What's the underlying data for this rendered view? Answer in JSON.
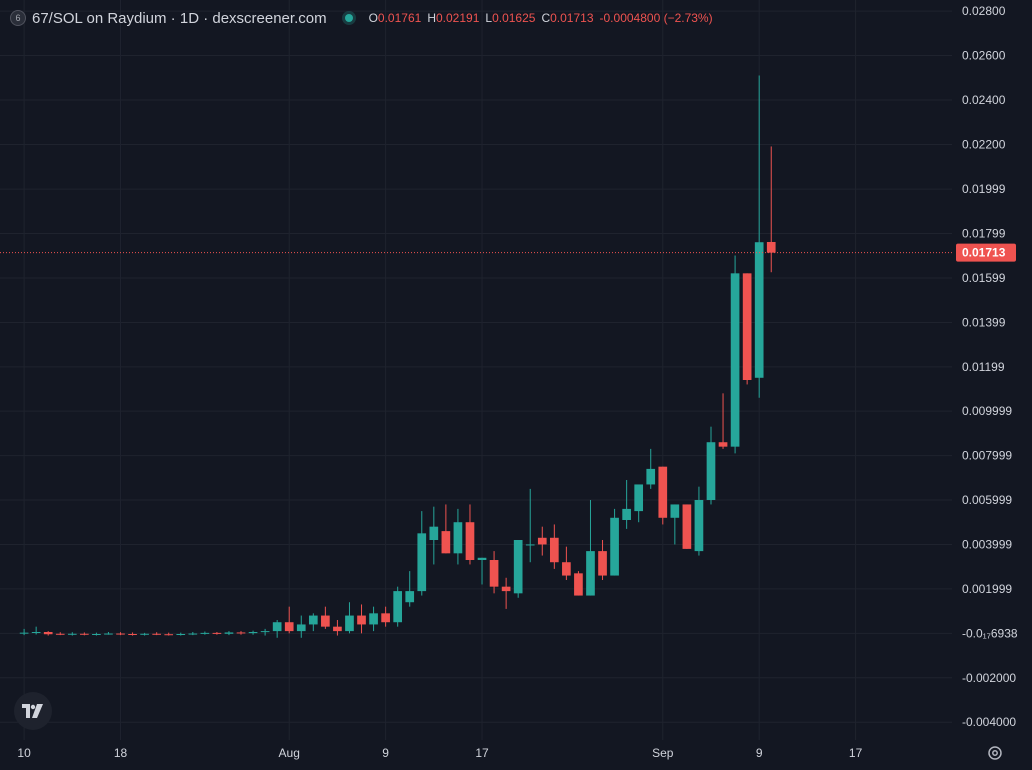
{
  "legend": {
    "logo_letter": "6",
    "symbol": "67/SOL on Raydium · 1D · dexscreener.com",
    "open_key": "O",
    "open": "0.01761",
    "high_key": "H",
    "high": "0.02191",
    "low_key": "L",
    "low": "0.01625",
    "close_key": "C",
    "close": "0.01713",
    "change": "-0.0004800 (−2.73%)"
  },
  "colors": {
    "background": "#131722",
    "up": "#26a69a",
    "down": "#ef5350",
    "grid": "#1f232e",
    "text": "#d1d4dc"
  },
  "icons": {
    "logo": "tradingview-logo-icon",
    "settings": "settings-gear-icon"
  },
  "chart_data": {
    "type": "candlestick",
    "title": "67/SOL on Raydium · 1D · dexscreener.com",
    "y_tick_labels": [
      "0.02800",
      "0.02600",
      "0.02400",
      "0.02200",
      "0.01999",
      "0.01799",
      "0.01599",
      "0.01399",
      "0.01199",
      "0.009999",
      "0.007999",
      "0.005999",
      "0.003999",
      "0.001999",
      "-0.0₁₇6938",
      "-0.002000",
      "-0.004000"
    ],
    "y_tick_values": [
      0.028,
      0.026,
      0.024,
      0.022,
      0.01999,
      0.01799,
      0.01599,
      0.01399,
      0.01199,
      0.009999,
      0.007999,
      0.005999,
      0.003999,
      0.001999,
      0,
      -0.002,
      -0.004
    ],
    "x_tick_labels": [
      "10",
      "18",
      "Aug",
      "9",
      "17",
      "Sep",
      "9",
      "17"
    ],
    "x_tick_dates": [
      "2025-07-10",
      "2025-07-18",
      "2025-08-01",
      "2025-08-09",
      "2025-08-17",
      "2025-09-01",
      "2025-09-09",
      "2025-09-17"
    ],
    "ylim": [
      -0.0048,
      0.0285
    ],
    "xlim": [
      "2025-07-08",
      "2025-09-25"
    ],
    "last_price": "0.01713",
    "grid": true,
    "candles": [
      {
        "date": "2025-07-10",
        "o": 1e-05,
        "h": 0.0002,
        "l": -8e-05,
        "c": 3e-05
      },
      {
        "date": "2025-07-11",
        "o": 3e-05,
        "h": 0.0003,
        "l": -5e-05,
        "c": 6e-05
      },
      {
        "date": "2025-07-12",
        "o": 6e-05,
        "h": 0.0001,
        "l": -0.0001,
        "c": -4e-05
      },
      {
        "date": "2025-07-13",
        "o": -2e-05,
        "h": 5e-05,
        "l": -8e-05,
        "c": -4e-05
      },
      {
        "date": "2025-07-14",
        "o": -4e-05,
        "h": 5e-05,
        "l": -0.0001,
        "c": -2e-05
      },
      {
        "date": "2025-07-15",
        "o": -2e-05,
        "h": 4e-05,
        "l": -9e-05,
        "c": -5e-05
      },
      {
        "date": "2025-07-16",
        "o": -5e-05,
        "h": 3e-05,
        "l": -0.0001,
        "c": -3e-05
      },
      {
        "date": "2025-07-17",
        "o": -3e-05,
        "h": 6e-05,
        "l": -6e-05,
        "c": -1e-05
      },
      {
        "date": "2025-07-18",
        "o": -1e-05,
        "h": 5e-05,
        "l": -8e-05,
        "c": -3e-05
      },
      {
        "date": "2025-07-19",
        "o": -3e-05,
        "h": 4e-05,
        "l": -0.0001,
        "c": -5e-05
      },
      {
        "date": "2025-07-20",
        "o": -5e-05,
        "h": 2e-05,
        "l": -0.0001,
        "c": -2e-05
      },
      {
        "date": "2025-07-21",
        "o": -2e-05,
        "h": 5e-05,
        "l": -8e-05,
        "c": -4e-05
      },
      {
        "date": "2025-07-22",
        "o": -4e-05,
        "h": 3e-05,
        "l": -0.0001,
        "c": -6e-05
      },
      {
        "date": "2025-07-23",
        "o": -6e-05,
        "h": 3e-05,
        "l": -0.0001,
        "c": -3e-05
      },
      {
        "date": "2025-07-24",
        "o": -3e-05,
        "h": 6e-05,
        "l": -8e-05,
        "c": -1e-05
      },
      {
        "date": "2025-07-25",
        "o": -1e-05,
        "h": 8e-05,
        "l": -6e-05,
        "c": 2e-05
      },
      {
        "date": "2025-07-26",
        "o": 2e-05,
        "h": 6e-05,
        "l": -6e-05,
        "c": -2e-05
      },
      {
        "date": "2025-07-27",
        "o": -2e-05,
        "h": 0.0001,
        "l": -8e-05,
        "c": 4e-05
      },
      {
        "date": "2025-07-28",
        "o": 4e-05,
        "h": 0.0001,
        "l": -6e-05,
        "c": 1e-05
      },
      {
        "date": "2025-07-29",
        "o": 1e-05,
        "h": 0.00012,
        "l": -6e-05,
        "c": 6e-05
      },
      {
        "date": "2025-07-30",
        "o": 6e-05,
        "h": 0.0002,
        "l": -0.0001,
        "c": 0.0001
      },
      {
        "date": "2025-07-31",
        "o": 0.0001,
        "h": 0.0006,
        "l": -0.0002,
        "c": 0.0005
      },
      {
        "date": "2025-08-01",
        "o": 0.0005,
        "h": 0.0012,
        "l": 0.0,
        "c": 0.0001
      },
      {
        "date": "2025-08-02",
        "o": 0.0001,
        "h": 0.0008,
        "l": -0.0002,
        "c": 0.0004
      },
      {
        "date": "2025-08-03",
        "o": 0.0004,
        "h": 0.0009,
        "l": 0.0001,
        "c": 0.0008
      },
      {
        "date": "2025-08-04",
        "o": 0.0008,
        "h": 0.0012,
        "l": 0.0002,
        "c": 0.0003
      },
      {
        "date": "2025-08-05",
        "o": 0.0003,
        "h": 0.0006,
        "l": -0.0001,
        "c": 0.0001
      },
      {
        "date": "2025-08-06",
        "o": 0.0001,
        "h": 0.0014,
        "l": 0.0,
        "c": 0.0008
      },
      {
        "date": "2025-08-07",
        "o": 0.0008,
        "h": 0.0013,
        "l": 0.0,
        "c": 0.0004
      },
      {
        "date": "2025-08-08",
        "o": 0.0004,
        "h": 0.0012,
        "l": 0.0001,
        "c": 0.0009
      },
      {
        "date": "2025-08-09",
        "o": 0.0009,
        "h": 0.0012,
        "l": 0.0003,
        "c": 0.0005
      },
      {
        "date": "2025-08-10",
        "o": 0.0005,
        "h": 0.0021,
        "l": 0.0003,
        "c": 0.0019
      },
      {
        "date": "2025-08-11",
        "o": 0.0014,
        "h": 0.0028,
        "l": 0.0012,
        "c": 0.0019
      },
      {
        "date": "2025-08-12",
        "o": 0.0019,
        "h": 0.0055,
        "l": 0.0017,
        "c": 0.0045
      },
      {
        "date": "2025-08-13",
        "o": 0.0042,
        "h": 0.0057,
        "l": 0.0031,
        "c": 0.0048
      },
      {
        "date": "2025-08-14",
        "o": 0.0046,
        "h": 0.0058,
        "l": 0.0036,
        "c": 0.0036
      },
      {
        "date": "2025-08-15",
        "o": 0.0036,
        "h": 0.0056,
        "l": 0.0031,
        "c": 0.005
      },
      {
        "date": "2025-08-16",
        "o": 0.005,
        "h": 0.0058,
        "l": 0.0031,
        "c": 0.0033
      },
      {
        "date": "2025-08-17",
        "o": 0.0033,
        "h": 0.0034,
        "l": 0.0022,
        "c": 0.0034
      },
      {
        "date": "2025-08-18",
        "o": 0.0033,
        "h": 0.0037,
        "l": 0.0018,
        "c": 0.0021
      },
      {
        "date": "2025-08-19",
        "o": 0.0021,
        "h": 0.0025,
        "l": 0.0011,
        "c": 0.0019
      },
      {
        "date": "2025-08-20",
        "o": 0.0018,
        "h": 0.0042,
        "l": 0.0016,
        "c": 0.0042
      },
      {
        "date": "2025-08-21",
        "o": 0.004,
        "h": 0.0065,
        "l": 0.0032,
        "c": 0.004
      },
      {
        "date": "2025-08-22",
        "o": 0.0043,
        "h": 0.0048,
        "l": 0.0035,
        "c": 0.004
      },
      {
        "date": "2025-08-23",
        "o": 0.0043,
        "h": 0.0049,
        "l": 0.0029,
        "c": 0.0032
      },
      {
        "date": "2025-08-24",
        "o": 0.0032,
        "h": 0.0039,
        "l": 0.0024,
        "c": 0.0026
      },
      {
        "date": "2025-08-25",
        "o": 0.0027,
        "h": 0.0028,
        "l": 0.0017,
        "c": 0.0017
      },
      {
        "date": "2025-08-26",
        "o": 0.0017,
        "h": 0.006,
        "l": 0.0017,
        "c": 0.0037
      },
      {
        "date": "2025-08-27",
        "o": 0.0037,
        "h": 0.0042,
        "l": 0.0024,
        "c": 0.0026
      },
      {
        "date": "2025-08-28",
        "o": 0.0026,
        "h": 0.0056,
        "l": 0.0026,
        "c": 0.0052
      },
      {
        "date": "2025-08-29",
        "o": 0.0051,
        "h": 0.0069,
        "l": 0.0047,
        "c": 0.0056
      },
      {
        "date": "2025-08-30",
        "o": 0.0055,
        "h": 0.0066,
        "l": 0.005,
        "c": 0.0067
      },
      {
        "date": "2025-08-31",
        "o": 0.0067,
        "h": 0.0083,
        "l": 0.0065,
        "c": 0.0074
      },
      {
        "date": "2025-09-01",
        "o": 0.0075,
        "h": 0.0075,
        "l": 0.0049,
        "c": 0.0052
      },
      {
        "date": "2025-09-02",
        "o": 0.0052,
        "h": 0.0058,
        "l": 0.004,
        "c": 0.0058
      },
      {
        "date": "2025-09-03",
        "o": 0.0058,
        "h": 0.0058,
        "l": 0.0038,
        "c": 0.0038
      },
      {
        "date": "2025-09-04",
        "o": 0.0037,
        "h": 0.0066,
        "l": 0.0035,
        "c": 0.006
      },
      {
        "date": "2025-09-05",
        "o": 0.006,
        "h": 0.0093,
        "l": 0.0058,
        "c": 0.0086
      },
      {
        "date": "2025-09-06",
        "o": 0.0086,
        "h": 0.0108,
        "l": 0.0083,
        "c": 0.0084
      },
      {
        "date": "2025-09-07",
        "o": 0.0084,
        "h": 0.017,
        "l": 0.0081,
        "c": 0.0162
      },
      {
        "date": "2025-09-08",
        "o": 0.0162,
        "h": 0.0162,
        "l": 0.0112,
        "c": 0.0114
      },
      {
        "date": "2025-09-09",
        "o": 0.0115,
        "h": 0.0251,
        "l": 0.0106,
        "c": 0.0176
      },
      {
        "date": "2025-09-10",
        "o": 0.01761,
        "h": 0.02191,
        "l": 0.01625,
        "c": 0.01713
      }
    ]
  }
}
